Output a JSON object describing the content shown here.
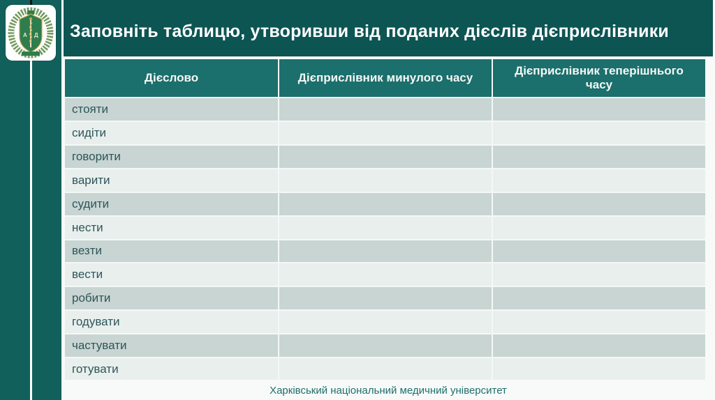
{
  "slide": {
    "title": "Заповніть таблицю, утворивши від поданих дієслів дієприслівники",
    "footer": "Харківський національний медичний університет",
    "logo_icon": "knmu-university-emblem-icon"
  },
  "table": {
    "columns": [
      {
        "key": "verb",
        "label": "Дієслово"
      },
      {
        "key": "past",
        "label": "Дієприслівник минулого часу"
      },
      {
        "key": "present",
        "label": "Дієприслівник теперішнього часу"
      }
    ],
    "rows": [
      {
        "verb": "стояти",
        "past": "",
        "present": ""
      },
      {
        "verb": "сидіти",
        "past": "",
        "present": ""
      },
      {
        "verb": "говорити",
        "past": "",
        "present": ""
      },
      {
        "verb": "варити",
        "past": "",
        "present": ""
      },
      {
        "verb": "судити",
        "past": "",
        "present": ""
      },
      {
        "verb": "нести",
        "past": "",
        "present": ""
      },
      {
        "verb": "везти",
        "past": "",
        "present": ""
      },
      {
        "verb": "вести",
        "past": "",
        "present": ""
      },
      {
        "verb": "робити",
        "past": "",
        "present": ""
      },
      {
        "verb": "годувати",
        "past": "",
        "present": ""
      },
      {
        "verb": "частувати",
        "past": "",
        "present": ""
      },
      {
        "verb": "готувати",
        "past": "",
        "present": ""
      }
    ]
  },
  "colors": {
    "background_teal": "#12605C",
    "title_bar_teal": "#0D5553",
    "header_teal": "#1B6F6C",
    "row_dark": "#C8D5D2",
    "row_light": "#E9EFED",
    "cell_text": "#2E5559",
    "footer_text": "#1E6E6B"
  }
}
